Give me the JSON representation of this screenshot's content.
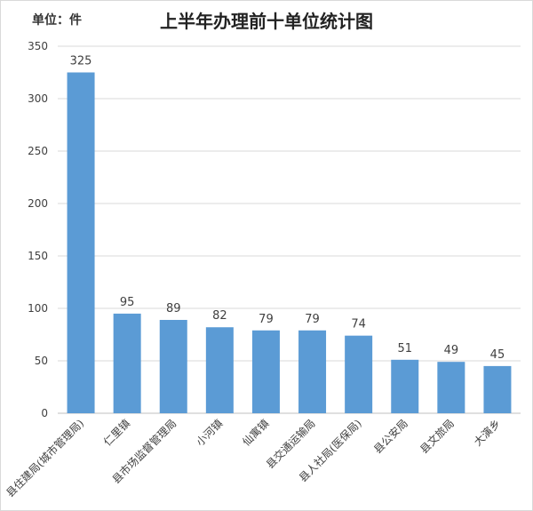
{
  "title": "上半年办理前十单位统计图",
  "unit_label": "单位：件",
  "colors": {
    "bar": "#5b9bd5",
    "grid": "#d9d9d9",
    "axis": "#bfbfbf",
    "text": "#404040"
  },
  "chart_data": {
    "type": "bar",
    "title": "上半年办理前十单位统计图",
    "categories": [
      "县住建局(城市管理局)",
      "仁里镇",
      "县市场监督管理局",
      "小河镇",
      "仙寓镇",
      "县交通运输局",
      "县人社局(医保局)",
      "县公安局",
      "县文旅局",
      "大演乡"
    ],
    "values": [
      325,
      95,
      89,
      82,
      79,
      79,
      74,
      51,
      49,
      45
    ],
    "ylim": [
      0,
      350
    ],
    "yticks": [
      0,
      50,
      100,
      150,
      200,
      250,
      300,
      350
    ],
    "grid": true,
    "data_labels": true,
    "legend": "none"
  }
}
